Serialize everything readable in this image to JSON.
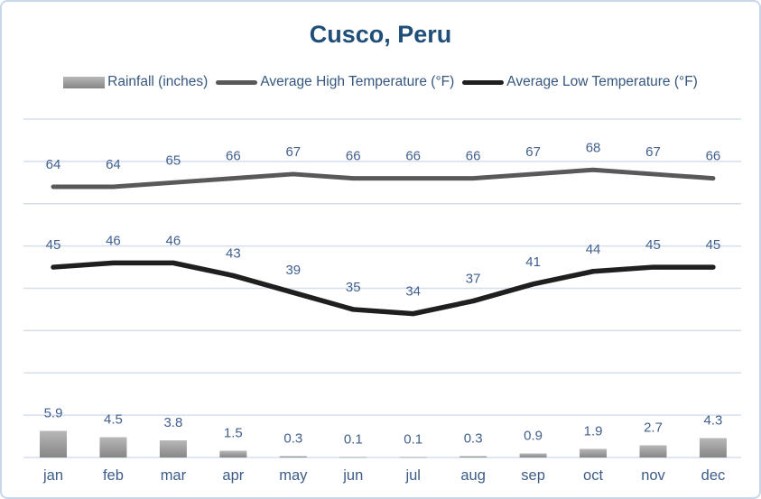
{
  "title": "Cusco, Peru",
  "legend": {
    "items": [
      {
        "label": "Rainfall (inches)",
        "swatch": "bar-swatch"
      },
      {
        "label": "Average High Temperature (°F)",
        "swatch": "high-line-swatch"
      },
      {
        "label": "Average Low Temperature (°F)",
        "swatch": "low-line-swatch"
      }
    ]
  },
  "colors": {
    "title_text": "#1f4e79",
    "data_label_text": "#41608e",
    "gridline": "#d4dfee",
    "canvas_border": "#c8d8ea",
    "high_line": "#595959",
    "low_line": "#1f1f1f",
    "bar_gray_top": "#b8b8b8",
    "bar_gray_bottom": "#868686"
  },
  "chart_data": {
    "type": "combo",
    "title": "Cusco, Peru",
    "categories": [
      "jan",
      "feb",
      "mar",
      "apr",
      "may",
      "jun",
      "jul",
      "aug",
      "sep",
      "oct",
      "nov",
      "dec"
    ],
    "series": [
      {
        "name": "Rainfall (inches)",
        "type": "bar",
        "unit": "inches",
        "values": [
          5.9,
          4.5,
          3.8,
          1.5,
          0.3,
          0.1,
          0.1,
          0.3,
          0.9,
          1.9,
          2.7,
          4.3
        ]
      },
      {
        "name": "Average High Temperature (°F)",
        "type": "line",
        "unit": "°F",
        "values": [
          64,
          64,
          65,
          66,
          67,
          66,
          66,
          66,
          67,
          68,
          67,
          66
        ]
      },
      {
        "name": "Average Low Temperature (°F)",
        "type": "line",
        "unit": "°F",
        "values": [
          45,
          46,
          46,
          43,
          39,
          35,
          34,
          37,
          41,
          44,
          45,
          45
        ]
      }
    ],
    "data_labels": true,
    "gridlines": true,
    "legend_position": "top",
    "temp_axis": {
      "min": 0,
      "max": 80,
      "gridline_step": 10,
      "labels_visible": false
    }
  }
}
